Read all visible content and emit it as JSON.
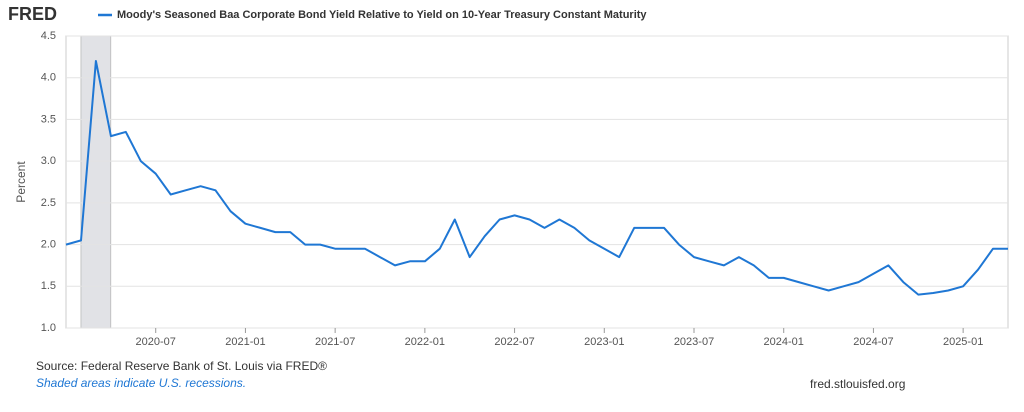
{
  "logo": "FRED",
  "chart_data": {
    "type": "line",
    "title": "Moody's Seasoned Baa Corporate Bond Yield Relative to Yield on 10-Year Treasury Constant Maturity",
    "ylabel": "Percent",
    "x": [
      "2020-01",
      "2020-02",
      "2020-03",
      "2020-04",
      "2020-05",
      "2020-06",
      "2020-07",
      "2020-08",
      "2020-09",
      "2020-10",
      "2020-11",
      "2020-12",
      "2021-01",
      "2021-02",
      "2021-03",
      "2021-04",
      "2021-05",
      "2021-06",
      "2021-07",
      "2021-08",
      "2021-09",
      "2021-10",
      "2021-11",
      "2021-12",
      "2022-01",
      "2022-02",
      "2022-03",
      "2022-04",
      "2022-05",
      "2022-06",
      "2022-07",
      "2022-08",
      "2022-09",
      "2022-10",
      "2022-11",
      "2022-12",
      "2023-01",
      "2023-02",
      "2023-03",
      "2023-04",
      "2023-05",
      "2023-06",
      "2023-07",
      "2023-08",
      "2023-09",
      "2023-10",
      "2023-11",
      "2023-12",
      "2024-01",
      "2024-02",
      "2024-03",
      "2024-04",
      "2024-05",
      "2024-06",
      "2024-07",
      "2024-08",
      "2024-09",
      "2024-10",
      "2024-11",
      "2024-12",
      "2025-01",
      "2025-02",
      "2025-03",
      "2025-04"
    ],
    "series": [
      {
        "name": "Moody's Seasoned Baa Corporate Bond Yield Relative to Yield on 10-Year Treasury Constant Maturity",
        "color": "#1f77d4",
        "values": [
          2.0,
          2.05,
          4.2,
          3.3,
          3.35,
          3.0,
          2.85,
          2.6,
          2.65,
          2.7,
          2.65,
          2.4,
          2.25,
          2.2,
          2.15,
          2.15,
          2.0,
          2.0,
          1.95,
          1.95,
          1.95,
          1.85,
          1.75,
          1.8,
          1.8,
          1.95,
          2.3,
          1.85,
          2.1,
          2.3,
          2.35,
          2.3,
          2.2,
          2.3,
          2.2,
          2.05,
          1.95,
          1.85,
          2.2,
          2.2,
          2.2,
          2.0,
          1.85,
          1.8,
          1.75,
          1.85,
          1.75,
          1.6,
          1.6,
          1.55,
          1.5,
          1.45,
          1.5,
          1.55,
          1.65,
          1.75,
          1.55,
          1.4,
          1.42,
          1.45,
          1.5,
          1.7,
          1.95,
          1.95
        ]
      }
    ],
    "xlim": [
      "2020-01",
      "2025-04"
    ],
    "xticks": [
      "2020-07",
      "2021-01",
      "2021-07",
      "2022-01",
      "2022-07",
      "2023-01",
      "2023-07",
      "2024-01",
      "2024-07",
      "2025-01"
    ],
    "ylim": [
      1,
      4.5
    ],
    "yticks": [
      {
        "value": 1,
        "label": "1.0"
      },
      1.5,
      {
        "value": 2,
        "label": "2.0"
      },
      2.5,
      {
        "value": 3,
        "label": "3.0"
      },
      3.5,
      {
        "value": 4,
        "label": "4.0"
      },
      4.5
    ],
    "grid": true,
    "recessions": [
      {
        "start": "2020-02",
        "end": "2020-04"
      }
    ]
  },
  "source": "Source: Federal Reserve Bank of St. Louis via FRED®",
  "note": "Shaded areas indicate U.S. recessions.",
  "url": "fred.stlouisfed.org"
}
